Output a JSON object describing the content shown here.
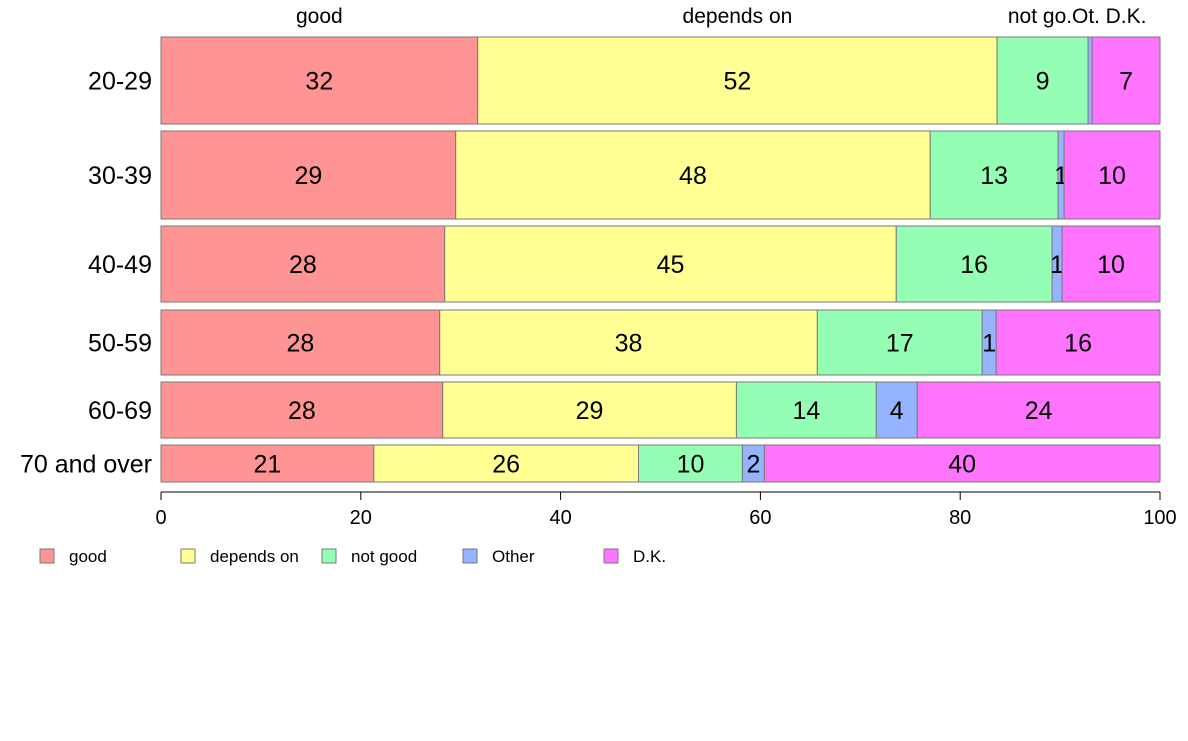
{
  "chart_data": {
    "type": "bar",
    "orientation": "horizontal",
    "stacked": true,
    "categories": [
      "20-29",
      "30-39",
      "40-49",
      "50-59",
      "60-69",
      "70 and over"
    ],
    "series": [
      {
        "name": "good",
        "color": "#ff9494",
        "values": [
          31.7,
          29.5,
          28.4,
          27.9,
          28.2,
          21.3
        ],
        "labels": [
          "32",
          "29",
          "28",
          "28",
          "28",
          "21"
        ]
      },
      {
        "name": "depends on",
        "color": "#ffff94",
        "values": [
          52.0,
          47.5,
          45.2,
          37.8,
          29.4,
          26.5
        ],
        "labels": [
          "52",
          "48",
          "45",
          "38",
          "29",
          "26"
        ]
      },
      {
        "name": "not good",
        "color": "#94ffb4",
        "values": [
          9.1,
          12.8,
          15.6,
          16.5,
          14.0,
          10.4
        ],
        "labels": [
          "9",
          "13",
          "16",
          "17",
          "14",
          "10"
        ]
      },
      {
        "name": "Other",
        "color": "#94b4ff",
        "values": [
          0.4,
          0.6,
          1.0,
          1.4,
          4.1,
          2.2
        ],
        "labels": [
          "",
          "1",
          "1",
          "1",
          "4",
          "2"
        ]
      },
      {
        "name": "D.K.",
        "color": "#ff74ff",
        "values": [
          6.8,
          9.6,
          9.8,
          16.4,
          24.3,
          39.6
        ],
        "labels": [
          "7",
          "10",
          "10",
          "16",
          "24",
          "40"
        ]
      }
    ],
    "top_labels": [
      "good",
      "depends on",
      "not go.",
      "Ot.",
      "D.K."
    ],
    "xlim": [
      0,
      100
    ],
    "xticks": [
      "0",
      "20",
      "40",
      "60",
      "80",
      "100"
    ],
    "legend_position": "bottom-left",
    "grid": false,
    "title": "",
    "xlabel": "",
    "ylabel": ""
  }
}
